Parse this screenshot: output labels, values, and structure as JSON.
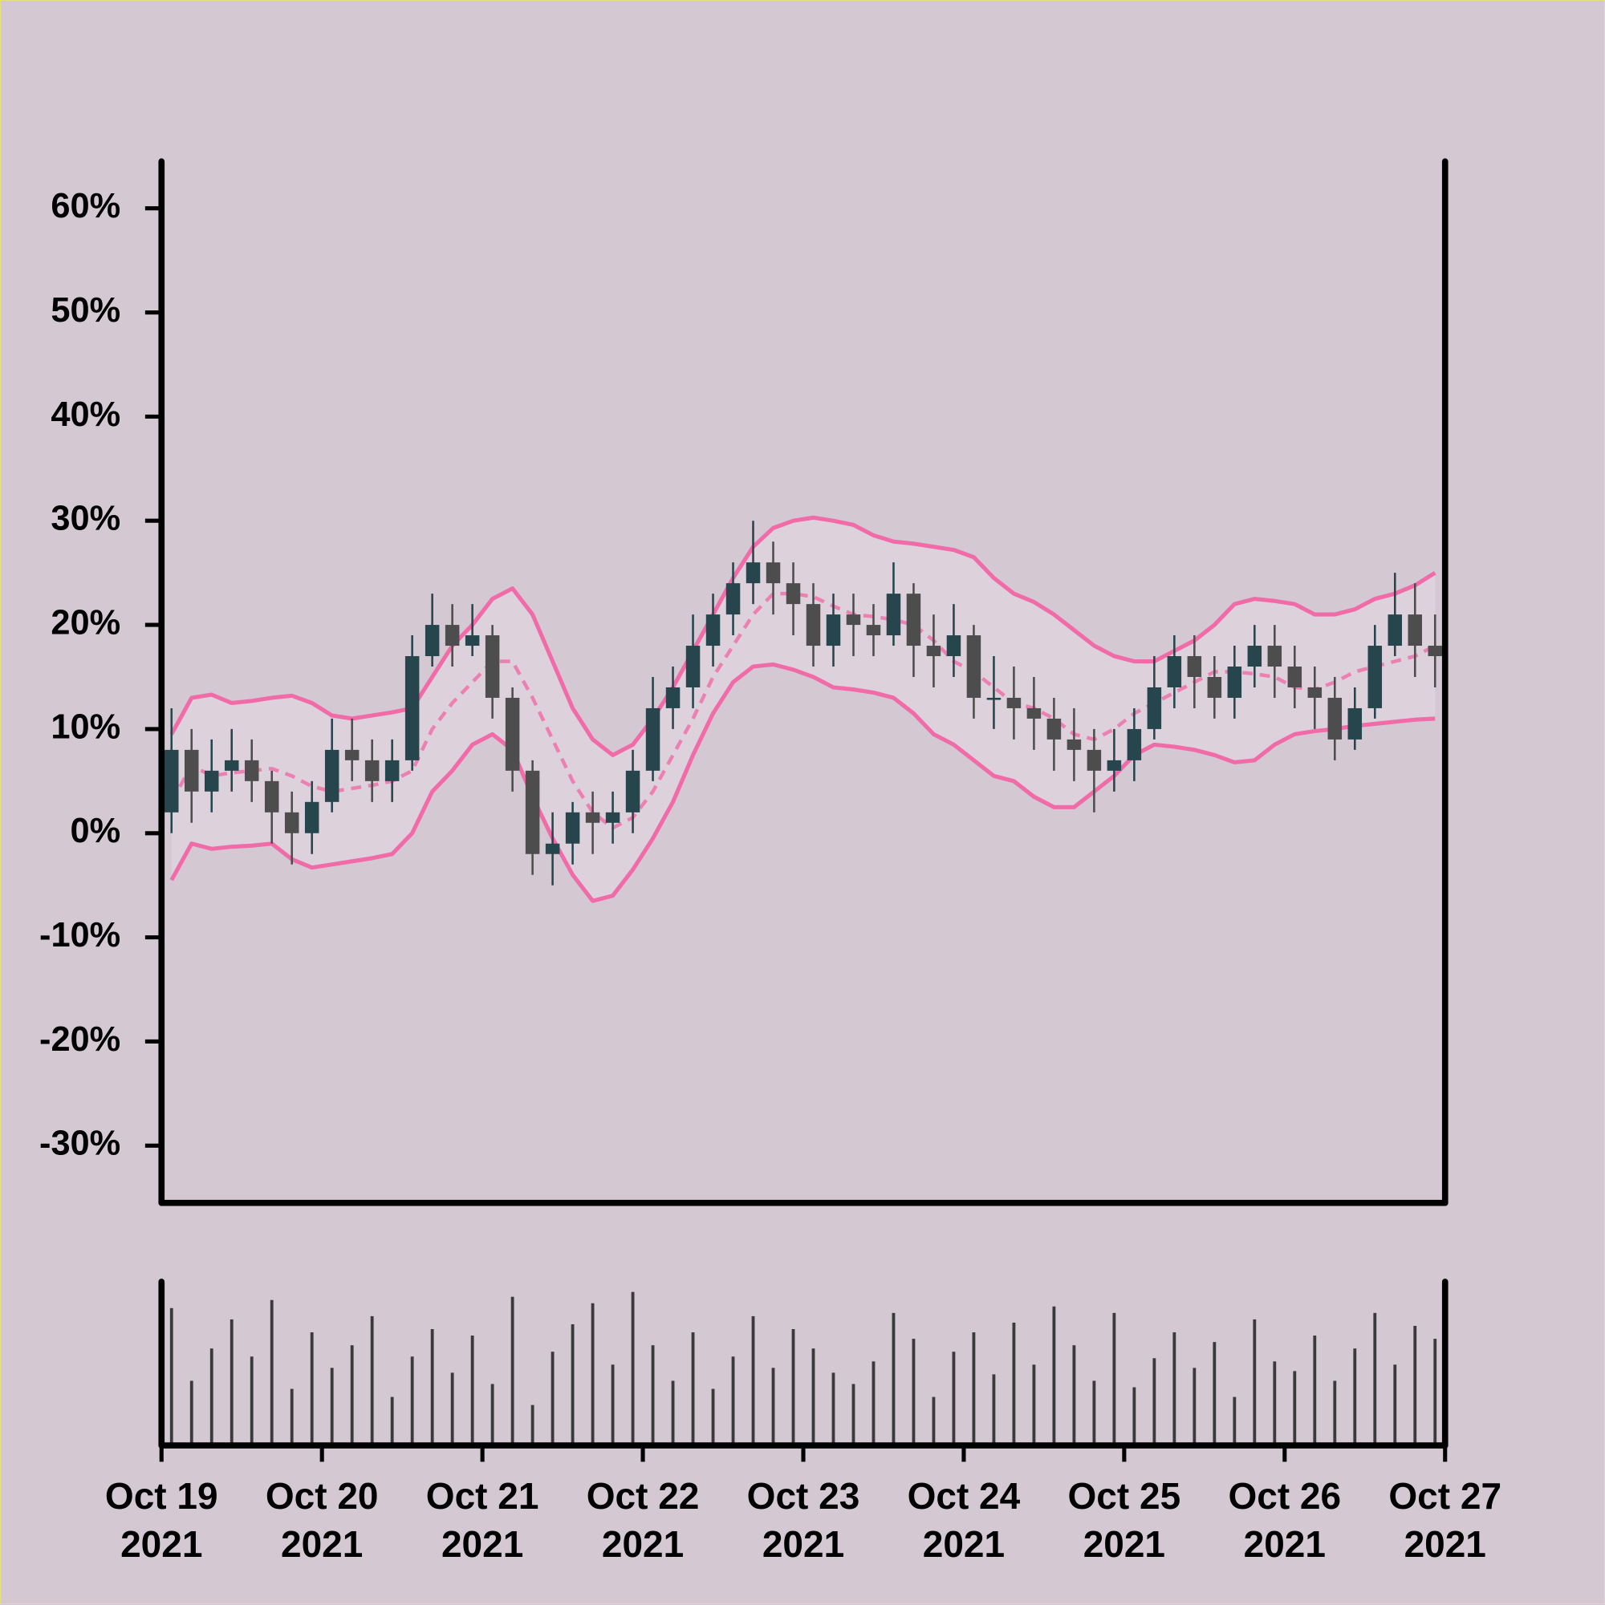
{
  "chart_data": {
    "type": "candlestick",
    "xlim": [
      "2021-10-19",
      "2021-10-27"
    ],
    "xticks": [
      {
        "value": "2021-10-19",
        "label": "Oct 19 2021"
      },
      {
        "value": "2021-10-20",
        "label": "Oct 20 2021"
      },
      {
        "value": "2021-10-21",
        "label": "Oct 21 2021"
      },
      {
        "value": "2021-10-22",
        "label": "Oct 22 2021"
      },
      {
        "value": "2021-10-23",
        "label": "Oct 23 2021"
      },
      {
        "value": "2021-10-24",
        "label": "Oct 24 2021"
      },
      {
        "value": "2021-10-25",
        "label": "Oct 25 2021"
      },
      {
        "value": "2021-10-26",
        "label": "Oct 26 2021"
      },
      {
        "value": "2021-10-27",
        "label": "Oct 27 2021"
      }
    ],
    "ylim": [
      -35.5,
      64.5
    ],
    "yticks": [
      {
        "value": -30,
        "label": "-30%"
      },
      {
        "value": -20,
        "label": "-20%"
      },
      {
        "value": -10,
        "label": "-10%"
      },
      {
        "value": 0,
        "label": "0%"
      },
      {
        "value": 10,
        "label": "10%"
      },
      {
        "value": 20,
        "label": "20%"
      },
      {
        "value": 30,
        "label": "30%"
      },
      {
        "value": 40,
        "label": "40%"
      },
      {
        "value": 50,
        "label": "50%"
      },
      {
        "value": 60,
        "label": "60%"
      }
    ],
    "candles": {
      "open": [
        2,
        8,
        4,
        6,
        7,
        5,
        2,
        0,
        3,
        8,
        7,
        5,
        7,
        17,
        20,
        18,
        19,
        13,
        6,
        -2,
        -1,
        2,
        1,
        2,
        6,
        12,
        14,
        18,
        21,
        24,
        26,
        24,
        22,
        18,
        21,
        20,
        19,
        23,
        18,
        17,
        19,
        13,
        13,
        12,
        11,
        9,
        8,
        6,
        7,
        10,
        14,
        17,
        15,
        13,
        16,
        18,
        16,
        14,
        13,
        9,
        12,
        18,
        21,
        18
      ],
      "high": [
        12,
        10,
        9,
        10,
        9,
        6,
        4,
        5,
        11,
        11,
        9,
        9,
        19,
        23,
        22,
        22,
        20,
        14,
        7,
        2,
        3,
        4,
        4,
        8,
        15,
        16,
        21,
        23,
        26,
        30,
        28,
        26,
        24,
        23,
        23,
        22,
        26,
        24,
        21,
        22,
        20,
        17,
        16,
        15,
        13,
        12,
        10,
        10,
        12,
        17,
        19,
        19,
        17,
        18,
        20,
        20,
        18,
        16,
        15,
        14,
        20,
        25,
        24,
        21
      ],
      "low": [
        0,
        1,
        2,
        4,
        3,
        -1,
        -3,
        -2,
        2,
        5,
        3,
        3,
        6,
        16,
        16,
        17,
        11,
        4,
        -4,
        -5,
        -3,
        -2,
        -1,
        0,
        5,
        10,
        12,
        16,
        19,
        22,
        21,
        19,
        16,
        16,
        17,
        17,
        18,
        15,
        14,
        15,
        11,
        10,
        9,
        8,
        6,
        5,
        2,
        4,
        5,
        9,
        12,
        12,
        11,
        11,
        14,
        13,
        12,
        10,
        7,
        8,
        11,
        17,
        15,
        14
      ],
      "close": [
        8,
        4,
        6,
        7,
        5,
        2,
        0,
        3,
        8,
        7,
        5,
        7,
        17,
        20,
        18,
        19,
        13,
        6,
        -2,
        -1,
        2,
        1,
        2,
        6,
        12,
        14,
        18,
        21,
        24,
        26,
        24,
        22,
        18,
        21,
        20,
        19,
        23,
        18,
        17,
        19,
        13,
        13,
        12,
        11,
        9,
        8,
        6,
        7,
        10,
        14,
        17,
        15,
        13,
        16,
        18,
        16,
        14,
        13,
        9,
        12,
        18,
        21,
        18,
        17
      ],
      "volume": [
        85,
        40,
        60,
        78,
        55,
        90,
        35,
        70,
        48,
        62,
        80,
        30,
        55,
        72,
        45,
        68,
        38,
        92,
        25,
        58,
        75,
        88,
        50,
        95,
        62,
        40,
        70,
        35,
        55,
        80,
        48,
        72,
        60,
        45,
        38,
        52,
        82,
        66,
        30,
        58,
        70,
        44,
        76,
        50,
        86,
        62,
        40,
        82,
        36,
        54,
        70,
        48,
        64,
        30,
        78,
        52,
        46,
        68,
        40,
        60,
        82,
        50,
        74,
        66
      ],
      "up_color": "#26454d",
      "down_color": "#4d4d4d",
      "volume_color": "#3a3a3a"
    },
    "bands": {
      "color": "#f06ba8",
      "fill": "#ddd1dc",
      "upper": [
        9.5,
        13,
        13.3,
        12.5,
        12.7,
        13,
        13.2,
        12.5,
        11.3,
        11,
        11.3,
        11.6,
        12,
        15,
        18,
        20,
        22.5,
        23.5,
        21,
        16.5,
        12,
        9,
        7.5,
        8.5,
        11,
        14,
        17.5,
        21,
        24.5,
        27.5,
        29.3,
        30,
        30.3,
        30,
        29.6,
        28.6,
        28,
        27.8,
        27.5,
        27.2,
        26.5,
        24.5,
        23,
        22.2,
        21,
        19.5,
        18,
        17,
        16.5,
        16.5,
        17.5,
        18.5,
        20,
        22,
        22.5,
        22.3,
        22,
        21,
        21,
        21.5,
        22.5,
        23,
        23.8,
        25
      ],
      "middle": [
        3,
        6.5,
        5.5,
        5.8,
        6,
        6.2,
        5.5,
        4.5,
        4,
        4.3,
        4.6,
        5,
        6,
        10,
        12.5,
        14.5,
        16.5,
        16.5,
        13,
        9,
        5,
        2,
        0.5,
        1.5,
        4,
        7.5,
        11,
        15,
        18,
        21,
        23,
        23,
        22.7,
        21.8,
        21,
        20.8,
        20.5,
        20,
        18.5,
        16.5,
        15.5,
        14,
        12.5,
        12,
        11,
        9.5,
        9,
        10,
        11.5,
        12.5,
        13.5,
        14.5,
        15.5,
        15.5,
        15.3,
        15,
        14,
        13.8,
        14.5,
        15.5,
        16,
        16.5,
        17,
        18
      ],
      "lower": [
        -4.5,
        -1,
        -1.5,
        -1.3,
        -1.2,
        -1,
        -2.5,
        -3.3,
        -3,
        -2.7,
        -2.4,
        -2,
        0,
        4,
        6,
        8.5,
        9.5,
        8,
        3.5,
        -0.5,
        -4,
        -6.5,
        -6,
        -3.5,
        -0.5,
        3,
        7.5,
        11.5,
        14.5,
        16,
        16.2,
        15.7,
        15,
        14,
        13.8,
        13.5,
        13,
        11.5,
        9.5,
        8.5,
        7,
        5.5,
        5,
        3.5,
        2.5,
        2.5,
        4,
        5.5,
        7.5,
        8.5,
        8.3,
        8,
        7.5,
        6.8,
        7,
        8.5,
        9.5,
        9.8,
        10,
        10.3,
        10.5,
        10.7,
        10.9,
        11
      ]
    }
  }
}
